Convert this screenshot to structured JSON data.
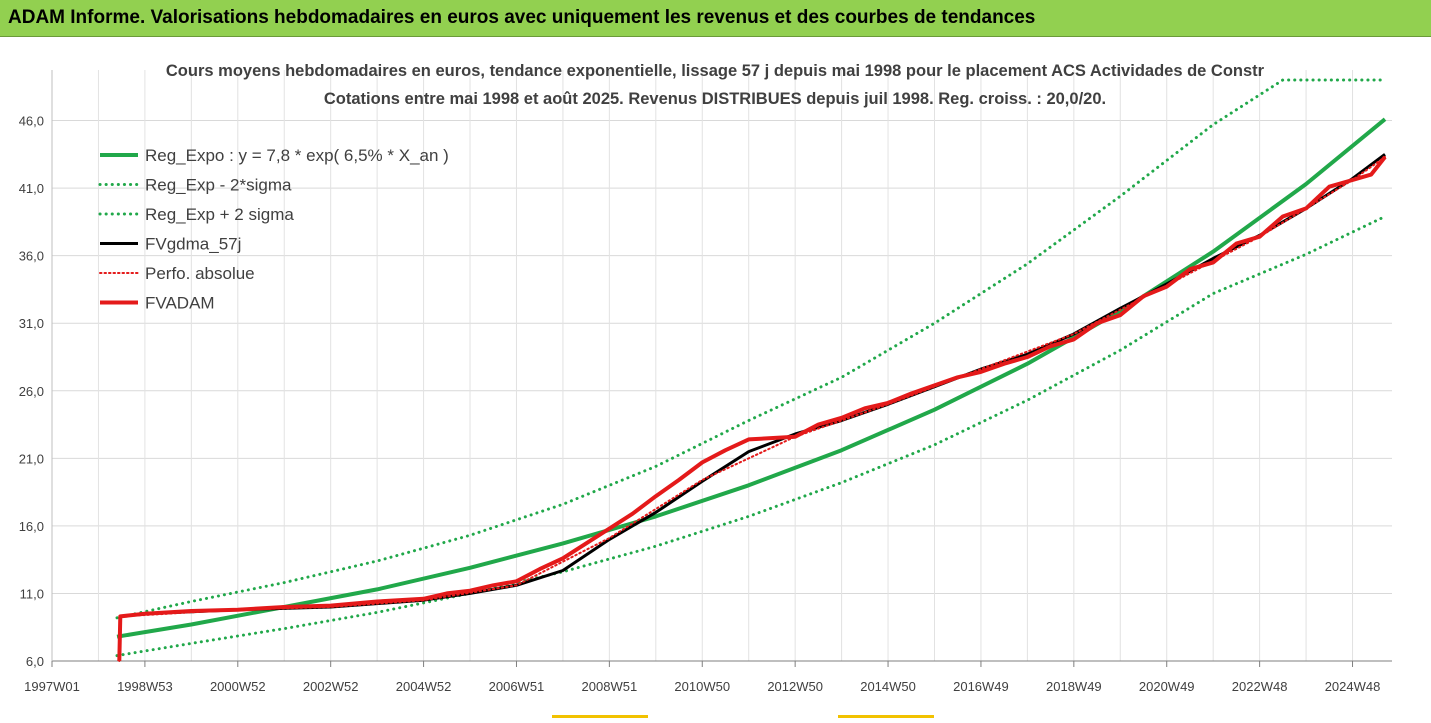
{
  "header": {
    "title": "ADAM Informe. Valorisations hebdomadaires en euros avec uniquement les revenus et des courbes de tendances"
  },
  "colors": {
    "header_bg": "#92d050",
    "reg_green": "#21a84a",
    "black": "#000000",
    "red": "#e41a1a",
    "grid": "#d9d9d9",
    "accent": "#f2c200"
  },
  "chart_data": {
    "type": "line",
    "title": "Cours moyens hebdomadaires en euros, tendance exponentielle, lissage 57 j depuis mai 1998 pour le placement ACS Actividades de Constr",
    "subtitle": "Cotations entre mai 1998 et août 2025.  Revenus DISTRIBUES depuis juil 1998. Reg. croiss. : 20,0/20.",
    "xlabel": "",
    "ylabel": "",
    "ylim": [
      6.0,
      49.0
    ],
    "xlim": [
      1997.0,
      2025.85
    ],
    "grid": true,
    "legend_position": "top-left",
    "y_ticks": [
      "6,0",
      "11,0",
      "16,0",
      "21,0",
      "26,0",
      "31,0",
      "36,0",
      "41,0",
      "46,0"
    ],
    "y_tick_values": [
      6,
      11,
      16,
      21,
      26,
      31,
      36,
      41,
      46
    ],
    "x_ticks": [
      "1997W01",
      "1998W53",
      "2000W52",
      "2002W52",
      "2004W52",
      "2006W51",
      "2008W51",
      "2010W50",
      "2012W50",
      "2014W50",
      "2016W49",
      "2018W49",
      "2020W49",
      "2022W48",
      "2024W48"
    ],
    "x_tick_values": [
      1997.0,
      1999.0,
      2001.0,
      2003.0,
      2005.0,
      2007.0,
      2009.0,
      2011.0,
      2013.0,
      2015.0,
      2017.0,
      2019.0,
      2021.0,
      2023.0,
      2025.0
    ],
    "legend": [
      {
        "label": "Reg_Expo : y = 7,8 * exp( 6,5% *  X_an )",
        "color": "#21a84a",
        "style": "solid",
        "width": 4
      },
      {
        "label": "Reg_Exp - 2*sigma",
        "color": "#21a84a",
        "style": "dotted",
        "width": 3
      },
      {
        "label": "Reg_Exp + 2 sigma",
        "color": "#21a84a",
        "style": "dotted",
        "width": 3
      },
      {
        "label": "FVgdma_57j",
        "color": "#000000",
        "style": "solid",
        "width": 3
      },
      {
        "label": "Perfo. absolue",
        "color": "#e41a1a",
        "style": "dotted",
        "width": 2
      },
      {
        "label": "FVADAM",
        "color": "#e41a1a",
        "style": "solid",
        "width": 4
      }
    ],
    "series": [
      {
        "name": "Reg_Expo : y = 7,8 * exp( 6,5% *  X_an )",
        "x": [
          1998.4,
          2000.0,
          2002.0,
          2004.0,
          2006.0,
          2008.0,
          2010.0,
          2012.0,
          2014.0,
          2016.0,
          2018.0,
          2020.0,
          2022.0,
          2024.0,
          2025.7
        ],
        "y": [
          7.8,
          8.7,
          10.0,
          11.3,
          12.9,
          14.7,
          16.7,
          19.0,
          21.6,
          24.6,
          28.0,
          31.9,
          36.3,
          41.3,
          46.1
        ]
      },
      {
        "name": "Reg_Exp - 2*sigma",
        "x": [
          1998.4,
          2000.0,
          2002.0,
          2004.0,
          2006.0,
          2008.0,
          2010.0,
          2012.0,
          2014.0,
          2016.0,
          2018.0,
          2020.0,
          2022.0,
          2024.0,
          2025.7
        ],
        "y": [
          6.4,
          7.3,
          8.4,
          9.6,
          11.0,
          12.6,
          14.5,
          16.7,
          19.2,
          22.0,
          25.3,
          29.0,
          33.2,
          36.1,
          38.9
        ]
      },
      {
        "name": "Reg_Exp + 2 sigma",
        "x": [
          1998.4,
          2000.0,
          2002.0,
          2004.0,
          2006.0,
          2008.0,
          2010.0,
          2012.0,
          2014.0,
          2016.0,
          2018.0,
          2020.0,
          2022.0,
          2023.5,
          2024.0,
          2025.7
        ],
        "y": [
          9.2,
          10.4,
          11.8,
          13.4,
          15.3,
          17.6,
          20.4,
          23.8,
          27.0,
          31.0,
          35.4,
          40.4,
          45.7,
          49.0,
          49.0,
          49.0
        ]
      },
      {
        "name": "FVgdma_57j",
        "x": [
          1998.5,
          1999.0,
          2001.0,
          2003.0,
          2005.0,
          2006.0,
          2007.0,
          2008.0,
          2009.0,
          2010.0,
          2011.0,
          2012.0,
          2013.0,
          2014.0,
          2015.0,
          2016.0,
          2017.0,
          2018.0,
          2019.0,
          2020.0,
          2021.0,
          2022.0,
          2023.0,
          2024.0,
          2025.0,
          2025.7
        ],
        "y": [
          9.3,
          9.5,
          9.8,
          10.0,
          10.5,
          11.0,
          11.6,
          12.7,
          15.0,
          17.0,
          19.3,
          21.5,
          22.8,
          23.8,
          25.0,
          26.3,
          27.6,
          28.7,
          30.2,
          32.1,
          33.9,
          35.8,
          37.5,
          39.5,
          41.7,
          43.5
        ]
      },
      {
        "name": "Perfo. absolue",
        "x": [
          1998.45,
          1998.47,
          2001.0,
          2003.0,
          2005.0,
          2007.0,
          2009.0,
          2011.0,
          2013.0,
          2015.0,
          2017.0,
          2019.0,
          2021.0,
          2023.0,
          2025.0,
          2025.7
        ],
        "y": [
          6.0,
          9.3,
          9.8,
          10.0,
          10.5,
          11.6,
          15.1,
          19.4,
          22.6,
          25.0,
          27.6,
          30.2,
          33.8,
          37.4,
          41.6,
          43.3
        ]
      },
      {
        "name": "FVADAM",
        "x": [
          1998.45,
          1998.47,
          1999.0,
          2000.0,
          2001.0,
          2002.0,
          2003.0,
          2004.0,
          2005.0,
          2005.5,
          2006.0,
          2006.5,
          2007.0,
          2007.5,
          2008.0,
          2008.5,
          2009.0,
          2009.5,
          2010.0,
          2010.5,
          2011.0,
          2011.5,
          2012.0,
          2013.0,
          2013.5,
          2014.0,
          2014.5,
          2015.0,
          2015.5,
          2016.0,
          2016.5,
          2017.0,
          2017.5,
          2018.0,
          2018.5,
          2019.0,
          2019.5,
          2020.0,
          2020.5,
          2021.0,
          2021.5,
          2022.0,
          2022.5,
          2023.0,
          2023.5,
          2024.0,
          2024.5,
          2025.0,
          2025.4,
          2025.7
        ],
        "y": [
          6.0,
          9.3,
          9.5,
          9.7,
          9.8,
          10.0,
          10.1,
          10.4,
          10.6,
          11.0,
          11.2,
          11.6,
          11.9,
          12.8,
          13.6,
          14.7,
          15.8,
          16.9,
          18.2,
          19.4,
          20.7,
          21.6,
          22.4,
          22.6,
          23.5,
          24.0,
          24.7,
          25.1,
          25.8,
          26.4,
          27.0,
          27.4,
          28.0,
          28.5,
          29.3,
          29.8,
          31.0,
          31.6,
          33.0,
          33.7,
          35.0,
          35.5,
          36.9,
          37.4,
          38.9,
          39.5,
          41.1,
          41.6,
          42.0,
          43.3
        ]
      }
    ]
  }
}
